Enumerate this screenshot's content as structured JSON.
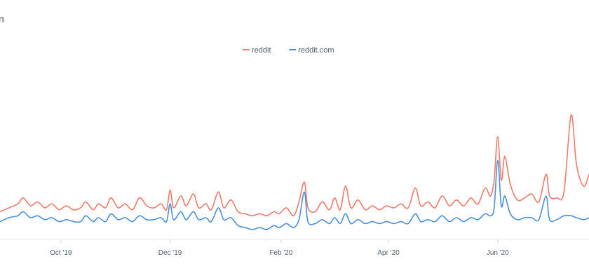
{
  "chart_data": {
    "type": "line",
    "title_fragment": "n",
    "legend_position": "top-center",
    "grid": false,
    "ylim": [
      0,
      100
    ],
    "x_start": "2019-08-28",
    "x_end": "2020-07-22",
    "x_ticks": [
      {
        "date": "2019-10-01",
        "label": "Oct '19"
      },
      {
        "date": "2019-12-01",
        "label": "Dec '19"
      },
      {
        "date": "2020-02-01",
        "label": "Feb '20"
      },
      {
        "date": "2020-04-01",
        "label": "Apr '20"
      },
      {
        "date": "2020-06-01",
        "label": "Jun '20"
      }
    ],
    "series": [
      {
        "name": "reddit",
        "color": "#f07b6b",
        "points": [
          [
            "2019-08-28",
            14
          ],
          [
            "2019-09-02",
            16
          ],
          [
            "2019-09-07",
            18
          ],
          [
            "2019-09-10",
            21
          ],
          [
            "2019-09-14",
            17
          ],
          [
            "2019-09-18",
            19
          ],
          [
            "2019-09-22",
            16
          ],
          [
            "2019-09-26",
            18
          ],
          [
            "2019-09-30",
            15
          ],
          [
            "2019-10-04",
            17
          ],
          [
            "2019-10-08",
            15
          ],
          [
            "2019-10-12",
            16
          ],
          [
            "2019-10-15",
            19
          ],
          [
            "2019-10-19",
            15
          ],
          [
            "2019-10-22",
            18
          ],
          [
            "2019-10-26",
            16
          ],
          [
            "2019-10-29",
            21
          ],
          [
            "2019-11-02",
            16
          ],
          [
            "2019-11-06",
            18
          ],
          [
            "2019-11-10",
            15
          ],
          [
            "2019-11-14",
            21
          ],
          [
            "2019-11-18",
            17
          ],
          [
            "2019-11-22",
            16
          ],
          [
            "2019-11-26",
            18
          ],
          [
            "2019-11-29",
            15
          ],
          [
            "2019-12-01",
            25
          ],
          [
            "2019-12-03",
            16
          ],
          [
            "2019-12-07",
            22
          ],
          [
            "2019-12-10",
            17
          ],
          [
            "2019-12-14",
            23
          ],
          [
            "2019-12-17",
            16
          ],
          [
            "2019-12-21",
            18
          ],
          [
            "2019-12-24",
            15
          ],
          [
            "2019-12-28",
            24
          ],
          [
            "2019-12-31",
            16
          ],
          [
            "2020-01-04",
            20
          ],
          [
            "2020-01-08",
            14
          ],
          [
            "2020-01-12",
            13
          ],
          [
            "2020-01-16",
            12
          ],
          [
            "2020-01-20",
            13
          ],
          [
            "2020-01-24",
            12
          ],
          [
            "2020-01-28",
            14
          ],
          [
            "2020-01-31",
            13
          ],
          [
            "2020-02-04",
            16
          ],
          [
            "2020-02-08",
            12
          ],
          [
            "2020-02-11",
            19
          ],
          [
            "2020-02-14",
            29
          ],
          [
            "2020-02-16",
            16
          ],
          [
            "2020-02-20",
            14
          ],
          [
            "2020-02-24",
            19
          ],
          [
            "2020-02-28",
            15
          ],
          [
            "2020-03-02",
            21
          ],
          [
            "2020-03-05",
            15
          ],
          [
            "2020-03-08",
            27
          ],
          [
            "2020-03-11",
            16
          ],
          [
            "2020-03-15",
            20
          ],
          [
            "2020-03-19",
            15
          ],
          [
            "2020-03-23",
            17
          ],
          [
            "2020-03-27",
            15
          ],
          [
            "2020-03-31",
            17
          ],
          [
            "2020-04-04",
            16
          ],
          [
            "2020-04-08",
            18
          ],
          [
            "2020-04-12",
            16
          ],
          [
            "2020-04-16",
            26
          ],
          [
            "2020-04-19",
            17
          ],
          [
            "2020-04-23",
            19
          ],
          [
            "2020-04-27",
            16
          ],
          [
            "2020-05-01",
            22
          ],
          [
            "2020-05-05",
            17
          ],
          [
            "2020-05-09",
            20
          ],
          [
            "2020-05-13",
            17
          ],
          [
            "2020-05-17",
            21
          ],
          [
            "2020-05-21",
            18
          ],
          [
            "2020-05-25",
            26
          ],
          [
            "2020-05-28",
            22
          ],
          [
            "2020-05-30",
            30
          ],
          [
            "2020-06-01",
            52
          ],
          [
            "2020-06-03",
            30
          ],
          [
            "2020-06-05",
            42
          ],
          [
            "2020-06-08",
            28
          ],
          [
            "2020-06-12",
            20
          ],
          [
            "2020-06-16",
            21
          ],
          [
            "2020-06-20",
            23
          ],
          [
            "2020-06-24",
            19
          ],
          [
            "2020-06-28",
            33
          ],
          [
            "2020-06-30",
            22
          ],
          [
            "2020-07-04",
            21
          ],
          [
            "2020-07-08",
            24
          ],
          [
            "2020-07-12",
            63
          ],
          [
            "2020-07-15",
            38
          ],
          [
            "2020-07-19",
            27
          ],
          [
            "2020-07-22",
            33
          ]
        ]
      },
      {
        "name": "reddit.com",
        "color": "#4a8fd8",
        "points": [
          [
            "2019-08-28",
            9
          ],
          [
            "2019-09-02",
            11
          ],
          [
            "2019-09-07",
            12
          ],
          [
            "2019-09-10",
            14
          ],
          [
            "2019-09-14",
            11
          ],
          [
            "2019-09-18",
            12
          ],
          [
            "2019-09-22",
            10
          ],
          [
            "2019-09-26",
            11
          ],
          [
            "2019-09-30",
            9
          ],
          [
            "2019-10-04",
            10
          ],
          [
            "2019-10-08",
            9
          ],
          [
            "2019-10-12",
            9
          ],
          [
            "2019-10-15",
            12
          ],
          [
            "2019-10-19",
            9
          ],
          [
            "2019-10-22",
            11
          ],
          [
            "2019-10-26",
            9
          ],
          [
            "2019-10-29",
            13
          ],
          [
            "2019-11-02",
            10
          ],
          [
            "2019-11-06",
            11
          ],
          [
            "2019-11-10",
            9
          ],
          [
            "2019-11-14",
            12
          ],
          [
            "2019-11-18",
            10
          ],
          [
            "2019-11-22",
            10
          ],
          [
            "2019-11-26",
            11
          ],
          [
            "2019-11-29",
            9
          ],
          [
            "2019-12-01",
            18
          ],
          [
            "2019-12-03",
            10
          ],
          [
            "2019-12-07",
            14
          ],
          [
            "2019-12-10",
            10
          ],
          [
            "2019-12-14",
            14
          ],
          [
            "2019-12-17",
            10
          ],
          [
            "2019-12-21",
            11
          ],
          [
            "2019-12-24",
            9
          ],
          [
            "2019-12-28",
            16
          ],
          [
            "2019-12-31",
            10
          ],
          [
            "2020-01-04",
            11
          ],
          [
            "2020-01-08",
            7
          ],
          [
            "2020-01-12",
            6
          ],
          [
            "2020-01-16",
            5
          ],
          [
            "2020-01-20",
            6
          ],
          [
            "2020-01-24",
            5
          ],
          [
            "2020-01-28",
            7
          ],
          [
            "2020-01-31",
            6
          ],
          [
            "2020-02-04",
            8
          ],
          [
            "2020-02-08",
            6
          ],
          [
            "2020-02-11",
            10
          ],
          [
            "2020-02-14",
            24
          ],
          [
            "2020-02-16",
            9
          ],
          [
            "2020-02-20",
            8
          ],
          [
            "2020-02-24",
            10
          ],
          [
            "2020-02-28",
            8
          ],
          [
            "2020-03-02",
            11
          ],
          [
            "2020-03-05",
            8
          ],
          [
            "2020-03-08",
            13
          ],
          [
            "2020-03-11",
            8
          ],
          [
            "2020-03-15",
            10
          ],
          [
            "2020-03-19",
            8
          ],
          [
            "2020-03-23",
            9
          ],
          [
            "2020-03-27",
            8
          ],
          [
            "2020-03-31",
            9
          ],
          [
            "2020-04-04",
            8
          ],
          [
            "2020-04-08",
            9
          ],
          [
            "2020-04-12",
            8
          ],
          [
            "2020-04-16",
            13
          ],
          [
            "2020-04-19",
            9
          ],
          [
            "2020-04-23",
            10
          ],
          [
            "2020-04-27",
            9
          ],
          [
            "2020-05-01",
            12
          ],
          [
            "2020-05-05",
            9
          ],
          [
            "2020-05-09",
            11
          ],
          [
            "2020-05-13",
            9
          ],
          [
            "2020-05-17",
            11
          ],
          [
            "2020-05-21",
            10
          ],
          [
            "2020-05-25",
            13
          ],
          [
            "2020-05-28",
            12
          ],
          [
            "2020-05-30",
            16
          ],
          [
            "2020-06-01",
            40
          ],
          [
            "2020-06-03",
            17
          ],
          [
            "2020-06-05",
            22
          ],
          [
            "2020-06-08",
            13
          ],
          [
            "2020-06-12",
            10
          ],
          [
            "2020-06-16",
            11
          ],
          [
            "2020-06-20",
            11
          ],
          [
            "2020-06-24",
            10
          ],
          [
            "2020-06-28",
            22
          ],
          [
            "2020-06-30",
            10
          ],
          [
            "2020-07-04",
            10
          ],
          [
            "2020-07-08",
            12
          ],
          [
            "2020-07-12",
            12
          ],
          [
            "2020-07-15",
            11
          ],
          [
            "2020-07-19",
            10
          ],
          [
            "2020-07-22",
            11
          ]
        ]
      }
    ]
  }
}
